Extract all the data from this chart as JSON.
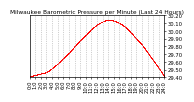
{
  "title": "Milwaukee Barometric Pressure per Minute (Last 24 Hours)",
  "line_color": "#ff0000",
  "bg_color": "#ffffff",
  "grid_color": "#aaaaaa",
  "ylim_min": 29.4,
  "ylim_max": 30.2,
  "yticks": [
    29.4,
    29.5,
    29.6,
    29.7,
    29.8,
    29.9,
    30.0,
    30.1,
    30.2
  ],
  "pressure_points_x": [
    0,
    1,
    2,
    3,
    4,
    5,
    6,
    7,
    8,
    9,
    10,
    11,
    12,
    13,
    14,
    15,
    16,
    17,
    18,
    19,
    20,
    21,
    22,
    23,
    24
  ],
  "pressure_points_y": [
    29.42,
    29.43,
    29.45,
    29.47,
    29.52,
    29.58,
    29.65,
    29.72,
    29.8,
    29.88,
    29.95,
    30.02,
    30.08,
    30.12,
    30.14,
    30.13,
    30.1,
    30.05,
    29.98,
    29.9,
    29.82,
    29.72,
    29.62,
    29.52,
    29.41
  ],
  "marker_size": 0.9,
  "tick_fontsize": 3.8,
  "title_fontsize": 4.2,
  "n_minutes": 1440
}
